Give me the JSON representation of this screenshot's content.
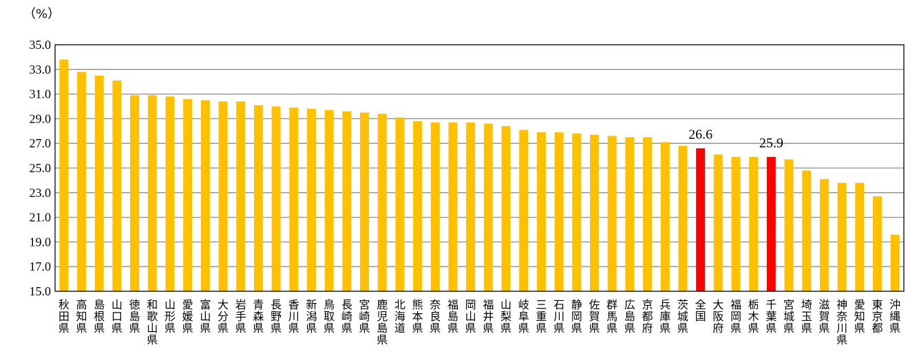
{
  "chart_data": {
    "type": "bar",
    "unit_label": "（%）",
    "ylim": [
      15.0,
      35.0
    ],
    "yticks": [
      "15.0",
      "17.0",
      "19.0",
      "21.0",
      "23.0",
      "25.0",
      "27.0",
      "29.0",
      "31.0",
      "33.0",
      "35.0"
    ],
    "grid": true,
    "legend": "none",
    "colors": {
      "default": "#FFC000",
      "highlight": "#FF0000"
    },
    "categories": [
      "秋田県",
      "高知県",
      "島根県",
      "山口県",
      "徳島県",
      "和歌山県",
      "山形県",
      "愛媛県",
      "富山県",
      "大分県",
      "岩手県",
      "青森県",
      "長野県",
      "香川県",
      "新潟県",
      "鳥取県",
      "長崎県",
      "宮崎県",
      "鹿児島県",
      "北海道",
      "熊本県",
      "奈良県",
      "福島県",
      "岡山県",
      "福井県",
      "山梨県",
      "岐阜県",
      "三重県",
      "石川県",
      "静岡県",
      "佐賀県",
      "群馬県",
      "広島県",
      "京都府",
      "兵庫県",
      "茨城県",
      "全国",
      "大阪府",
      "福岡県",
      "栃木県",
      "千葉県",
      "宮城県",
      "埼玉県",
      "滋賀県",
      "神奈川県",
      "愛知県",
      "東京都",
      "沖縄県"
    ],
    "values": [
      33.8,
      32.8,
      32.5,
      32.1,
      30.9,
      30.9,
      30.8,
      30.6,
      30.5,
      30.4,
      30.4,
      30.1,
      30.0,
      29.9,
      29.8,
      29.7,
      29.6,
      29.5,
      29.4,
      29.1,
      28.8,
      28.7,
      28.7,
      28.7,
      28.6,
      28.4,
      28.1,
      27.9,
      27.9,
      27.8,
      27.7,
      27.6,
      27.5,
      27.5,
      27.1,
      26.8,
      26.6,
      26.1,
      25.9,
      25.9,
      25.9,
      25.7,
      24.8,
      24.1,
      23.8,
      23.8,
      22.7,
      19.6
    ],
    "highlight": [
      "全国",
      "千葉県"
    ],
    "data_labels": [
      {
        "category": "全国",
        "text": "26.6"
      },
      {
        "category": "千葉県",
        "text": "25.9"
      }
    ]
  }
}
